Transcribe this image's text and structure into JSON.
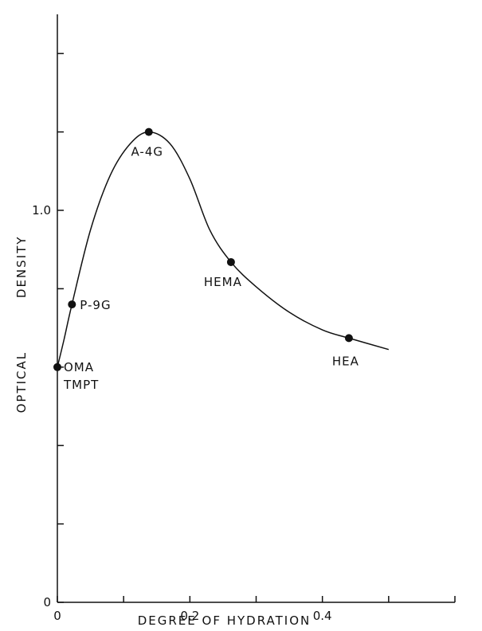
{
  "chart_data": {
    "type": "line",
    "xlabel": "DEGREE OF HYDRATION",
    "ylabel": "OPTICAL DENSITY",
    "xlim": [
      0,
      0.6
    ],
    "ylim": [
      0,
      1.5
    ],
    "x_ticks": [
      0,
      0.1,
      0.2,
      0.3,
      0.4,
      0.5,
      0.6
    ],
    "y_ticks": [
      0,
      0.2,
      0.4,
      0.6,
      0.8,
      1.0,
      1.2,
      1.4
    ],
    "x_tick_labels": [
      "0",
      "0.2",
      "0.4"
    ],
    "x_tick_label_values": [
      0,
      0.2,
      0.4
    ],
    "y_tick_labels": [
      "0",
      "1.0"
    ],
    "y_tick_label_values": [
      0,
      1.0
    ],
    "grid": false,
    "curve": {
      "x": [
        0.0,
        0.01,
        0.022,
        0.05,
        0.08,
        0.11,
        0.138,
        0.17,
        0.2,
        0.23,
        0.262,
        0.3,
        0.35,
        0.4,
        0.44,
        0.5
      ],
      "y": [
        0.6,
        0.67,
        0.76,
        0.95,
        1.09,
        1.17,
        1.2,
        1.17,
        1.08,
        0.95,
        0.868,
        0.805,
        0.74,
        0.695,
        0.674,
        0.645
      ]
    },
    "points": [
      {
        "label": "OMA",
        "label2": "TMPT",
        "x": 0.0,
        "y": 0.6
      },
      {
        "label": "P-9G",
        "label2": "",
        "x": 0.022,
        "y": 0.76
      },
      {
        "label": "A-4G",
        "label2": "",
        "x": 0.138,
        "y": 1.2
      },
      {
        "label": "HEMA",
        "label2": "",
        "x": 0.262,
        "y": 0.868
      },
      {
        "label": "HEA",
        "label2": "",
        "x": 0.44,
        "y": 0.674
      }
    ]
  }
}
